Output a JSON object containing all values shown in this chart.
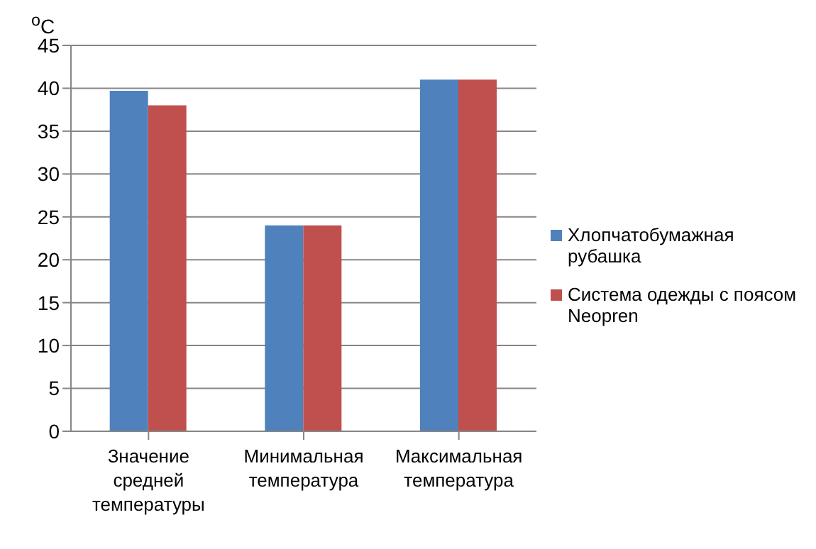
{
  "chart_data": {
    "type": "bar",
    "ylabel": "$^{o}$C",
    "categories": [
      "Значение средней температуры",
      "Минимальная температура",
      "Максимальная температура"
    ],
    "series": [
      {
        "name": "Хлопчатобумажная рубашка",
        "color": "#4f81bd",
        "values": [
          39.7,
          24,
          41
        ]
      },
      {
        "name": "Система одежды с поясом  Neopren",
        "color": "#c0504d",
        "values": [
          38,
          24,
          41
        ]
      }
    ],
    "ylim": [
      0,
      45
    ],
    "yticks": [
      0,
      5,
      10,
      15,
      20,
      25,
      30,
      35,
      40,
      45
    ],
    "grid": "y",
    "legend": "right"
  }
}
